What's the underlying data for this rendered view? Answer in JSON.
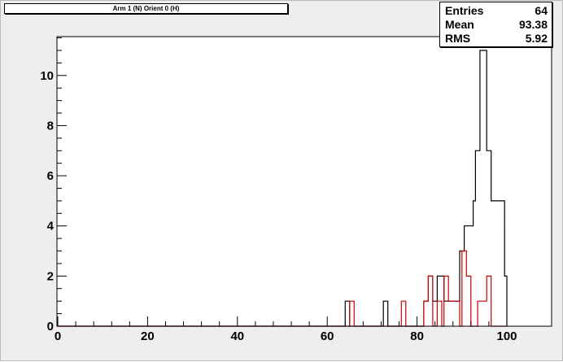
{
  "chart_data": {
    "type": "histogram",
    "title": "Arm 1 (N) Orient 0 (H)",
    "xlim": [
      0,
      100
    ],
    "ylim": [
      0,
      11.55
    ],
    "bin_width": 2.5,
    "x_ticks": [
      "0",
      "20",
      "40",
      "60",
      "80",
      "100"
    ],
    "y_ticks": [
      "0",
      "2",
      "4",
      "6",
      "8",
      "10"
    ],
    "stats": [
      {
        "label": "Entries",
        "value": "64"
      },
      {
        "label": "Mean",
        "value": "93.38"
      },
      {
        "label": "RMS",
        "value": "5.92"
      }
    ],
    "series": [
      {
        "color": "#000000",
        "bins": [
          {
            "x0": 0,
            "x1": 64.0,
            "y": 0
          },
          {
            "x0": 64.0,
            "x1": 65.0,
            "y": 1
          },
          {
            "x0": 65.0,
            "x1": 72.5,
            "y": 0
          },
          {
            "x0": 72.5,
            "x1": 73.5,
            "y": 1
          },
          {
            "x0": 73.5,
            "x1": 81.5,
            "y": 0
          },
          {
            "x0": 81.5,
            "x1": 82.5,
            "y": 1
          },
          {
            "x0": 82.5,
            "x1": 83.5,
            "y": 2
          },
          {
            "x0": 83.5,
            "x1": 84.5,
            "y": 1
          },
          {
            "x0": 84.5,
            "x1": 86.0,
            "y": 2
          },
          {
            "x0": 86.0,
            "x1": 89.5,
            "y": 1
          },
          {
            "x0": 89.5,
            "x1": 90.5,
            "y": 3
          },
          {
            "x0": 90.5,
            "x1": 92.5,
            "y": 4
          },
          {
            "x0": 92.5,
            "x1": 93.0,
            "y": 5
          },
          {
            "x0": 93.0,
            "x1": 94.0,
            "y": 7
          },
          {
            "x0": 94.0,
            "x1": 95.5,
            "y": 11
          },
          {
            "x0": 95.5,
            "x1": 96.5,
            "y": 7
          },
          {
            "x0": 96.5,
            "x1": 99.5,
            "y": 5
          },
          {
            "x0": 99.5,
            "x1": 100,
            "y": 2
          }
        ]
      },
      {
        "color": "#cc0000",
        "bins": [
          {
            "x0": 0,
            "x1": 65.0,
            "y": 0
          },
          {
            "x0": 65.0,
            "x1": 66.0,
            "y": 1
          },
          {
            "x0": 66.0,
            "x1": 76.5,
            "y": 0
          },
          {
            "x0": 76.5,
            "x1": 77.5,
            "y": 1
          },
          {
            "x0": 77.5,
            "x1": 81.5,
            "y": 0
          },
          {
            "x0": 81.5,
            "x1": 82.5,
            "y": 1
          },
          {
            "x0": 82.5,
            "x1": 83.5,
            "y": 2
          },
          {
            "x0": 83.5,
            "x1": 84.5,
            "y": 0
          },
          {
            "x0": 84.5,
            "x1": 85.5,
            "y": 1
          },
          {
            "x0": 85.5,
            "x1": 86.0,
            "y": 0
          },
          {
            "x0": 86.0,
            "x1": 87.0,
            "y": 2
          },
          {
            "x0": 87.0,
            "x1": 89.5,
            "y": 1
          },
          {
            "x0": 89.5,
            "x1": 90.0,
            "y": 0
          },
          {
            "x0": 90.0,
            "x1": 91.0,
            "y": 3
          },
          {
            "x0": 91.0,
            "x1": 92.0,
            "y": 2
          },
          {
            "x0": 92.0,
            "x1": 93.5,
            "y": 0
          },
          {
            "x0": 93.5,
            "x1": 95.5,
            "y": 1
          },
          {
            "x0": 95.5,
            "x1": 96.5,
            "y": 2
          },
          {
            "x0": 96.5,
            "x1": 100,
            "y": 0
          }
        ]
      }
    ]
  }
}
